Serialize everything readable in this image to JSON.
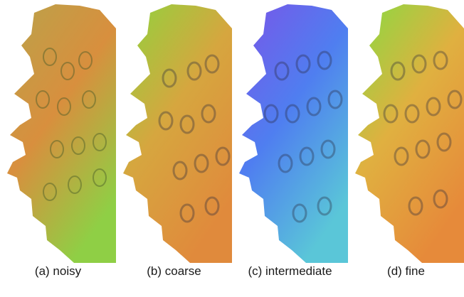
{
  "panels": [
    {
      "caption": "(a) noisy",
      "colors": [
        "#b9a34a",
        "#d88f3e",
        "#8fcf45"
      ]
    },
    {
      "caption": "(b) coarse",
      "colors": [
        "#8ed43e",
        "#d6a63f",
        "#e08a3c"
      ]
    },
    {
      "caption": "(c) intermediate",
      "colors": [
        "#7a55e8",
        "#4f7ef0",
        "#5ac6d8"
      ]
    },
    {
      "caption": "(d) fine",
      "colors": [
        "#86dc42",
        "#e0b040",
        "#e68a3a"
      ]
    }
  ]
}
